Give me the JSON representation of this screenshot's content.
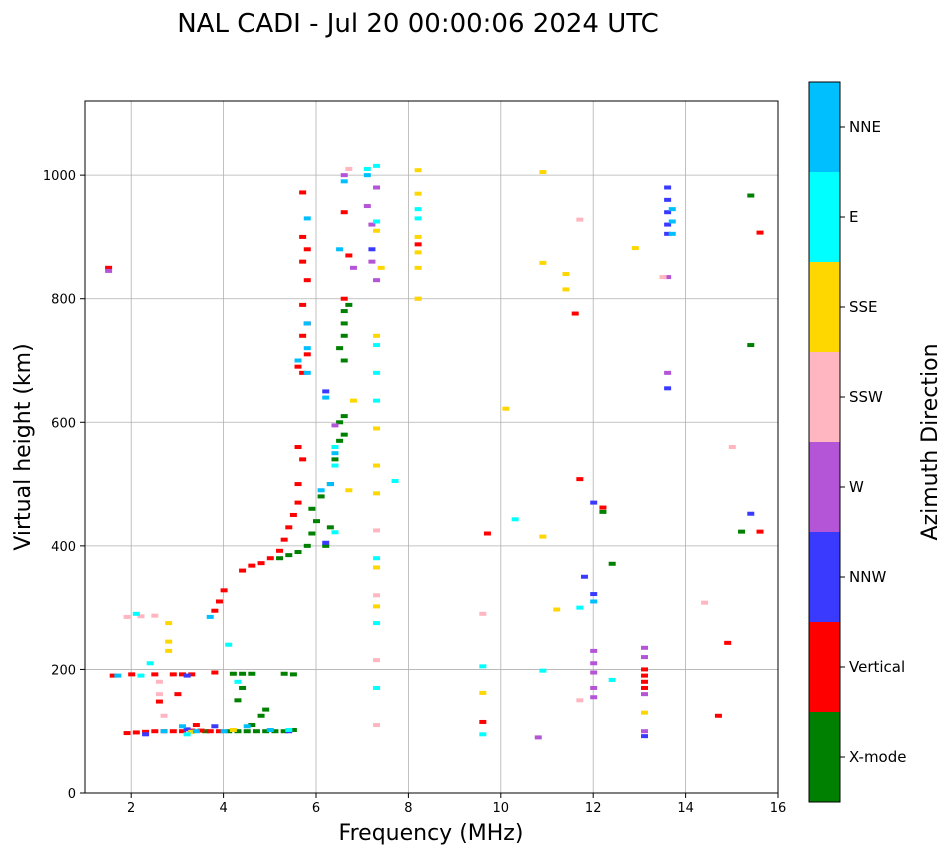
{
  "chart_data": {
    "type": "scatter",
    "title": "NAL CADI - Jul 20 00:00:06 2024 UTC",
    "xlabel": "Frequency (MHz)",
    "ylabel": "Virtual height (km)",
    "xlim": [
      1,
      16
    ],
    "ylim": [
      0,
      1120
    ],
    "xticks": [
      2,
      4,
      6,
      8,
      10,
      12,
      14,
      16
    ],
    "yticks": [
      0,
      200,
      400,
      600,
      800,
      1000
    ],
    "grid": true,
    "colorbar": {
      "title": "Azimuth Direction",
      "categories": [
        {
          "name": "X-mode",
          "color": "#008000"
        },
        {
          "name": "Vertical",
          "color": "#ff0000"
        },
        {
          "name": "NNW",
          "color": "#3a3aff"
        },
        {
          "name": "W",
          "color": "#b454d6"
        },
        {
          "name": "SSW",
          "color": "#ffb6c1"
        },
        {
          "name": "SSE",
          "color": "#ffd700"
        },
        {
          "name": "E",
          "color": "#00ffff"
        },
        {
          "name": "NNE",
          "color": "#00bfff"
        }
      ]
    },
    "series": [
      {
        "name": "X-mode",
        "points": [
          [
            4.1,
            100
          ],
          [
            4.3,
            100
          ],
          [
            4.5,
            100
          ],
          [
            4.7,
            100
          ],
          [
            4.9,
            100
          ],
          [
            5.1,
            100
          ],
          [
            5.3,
            100
          ],
          [
            5.5,
            102
          ],
          [
            3.3,
            100
          ],
          [
            3.6,
            100
          ],
          [
            4.2,
            193
          ],
          [
            4.4,
            193
          ],
          [
            4.6,
            193
          ],
          [
            5.3,
            193
          ],
          [
            5.5,
            192
          ],
          [
            4.8,
            125
          ],
          [
            4.9,
            135
          ],
          [
            4.6,
            110
          ],
          [
            4.3,
            150
          ],
          [
            4.4,
            170
          ],
          [
            5.2,
            380
          ],
          [
            5.4,
            385
          ],
          [
            5.6,
            390
          ],
          [
            5.8,
            400
          ],
          [
            5.9,
            420
          ],
          [
            6.0,
            440
          ],
          [
            5.9,
            460
          ],
          [
            6.1,
            480
          ],
          [
            6.3,
            500
          ],
          [
            6.4,
            540
          ],
          [
            6.5,
            570
          ],
          [
            6.6,
            610
          ],
          [
            6.6,
            740
          ],
          [
            6.6,
            760
          ],
          [
            6.6,
            780
          ],
          [
            6.7,
            790
          ],
          [
            6.5,
            720
          ],
          [
            6.6,
            700
          ],
          [
            6.2,
            400
          ],
          [
            6.3,
            430
          ],
          [
            6.5,
            600
          ],
          [
            6.6,
            580
          ],
          [
            15.4,
            967
          ],
          [
            15.4,
            725
          ],
          [
            15.2,
            423
          ],
          [
            12.4,
            371
          ],
          [
            12.2,
            455
          ]
        ]
      },
      {
        "name": "Vertical",
        "points": [
          [
            1.9,
            97
          ],
          [
            2.1,
            98
          ],
          [
            2.3,
            99
          ],
          [
            2.5,
            100
          ],
          [
            2.7,
            100
          ],
          [
            2.9,
            100
          ],
          [
            3.1,
            100
          ],
          [
            3.3,
            101
          ],
          [
            3.5,
            101
          ],
          [
            3.7,
            100
          ],
          [
            3.9,
            100
          ],
          [
            1.6,
            190
          ],
          [
            2.0,
            192
          ],
          [
            2.5,
            192
          ],
          [
            2.9,
            192
          ],
          [
            3.1,
            192
          ],
          [
            3.3,
            192
          ],
          [
            3.8,
            195
          ],
          [
            2.6,
            148
          ],
          [
            3.0,
            160
          ],
          [
            3.4,
            110
          ],
          [
            3.8,
            295
          ],
          [
            3.9,
            310
          ],
          [
            4.0,
            328
          ],
          [
            4.4,
            360
          ],
          [
            4.6,
            368
          ],
          [
            4.8,
            372
          ],
          [
            5.0,
            380
          ],
          [
            5.2,
            392
          ],
          [
            5.3,
            410
          ],
          [
            5.4,
            430
          ],
          [
            5.5,
            450
          ],
          [
            5.6,
            470
          ],
          [
            5.6,
            500
          ],
          [
            5.7,
            540
          ],
          [
            5.6,
            560
          ],
          [
            5.7,
            680
          ],
          [
            5.6,
            690
          ],
          [
            5.8,
            710
          ],
          [
            5.7,
            740
          ],
          [
            5.8,
            760
          ],
          [
            5.7,
            790
          ],
          [
            5.8,
            830
          ],
          [
            5.7,
            860
          ],
          [
            5.8,
            880
          ],
          [
            5.7,
            900
          ],
          [
            5.7,
            972
          ],
          [
            6.6,
            940
          ],
          [
            6.7,
            870
          ],
          [
            6.6,
            800
          ],
          [
            1.5,
            850
          ],
          [
            9.6,
            115
          ],
          [
            9.7,
            420
          ],
          [
            11.7,
            508
          ],
          [
            11.6,
            776
          ],
          [
            8.2,
            888
          ],
          [
            13.1,
            170
          ],
          [
            13.1,
            180
          ],
          [
            13.1,
            190
          ],
          [
            13.1,
            200
          ],
          [
            14.7,
            125
          ],
          [
            14.9,
            243
          ],
          [
            15.6,
            907
          ],
          [
            15.6,
            423
          ],
          [
            12.2,
            462
          ]
        ]
      },
      {
        "name": "NNW",
        "points": [
          [
            2.3,
            95
          ],
          [
            3.2,
            103
          ],
          [
            3.8,
            108
          ],
          [
            5.4,
            100
          ],
          [
            6.2,
            650
          ],
          [
            6.2,
            405
          ],
          [
            7.2,
            880
          ],
          [
            13.6,
            980
          ],
          [
            13.6,
            960
          ],
          [
            13.6,
            940
          ],
          [
            13.6,
            920
          ],
          [
            13.6,
            905
          ],
          [
            13.6,
            655
          ],
          [
            15.4,
            452
          ],
          [
            12.0,
            470
          ],
          [
            12.0,
            322
          ],
          [
            11.8,
            350
          ],
          [
            13.1,
            92
          ],
          [
            3.2,
            190
          ]
        ]
      },
      {
        "name": "W",
        "points": [
          [
            1.5,
            845
          ],
          [
            6.6,
            1000
          ],
          [
            7.2,
            860
          ],
          [
            7.3,
            830
          ],
          [
            7.2,
            920
          ],
          [
            7.1,
            950
          ],
          [
            7.3,
            980
          ],
          [
            6.8,
            850
          ],
          [
            6.4,
            595
          ],
          [
            12.0,
            155
          ],
          [
            12.0,
            170
          ],
          [
            12.0,
            195
          ],
          [
            12.0,
            210
          ],
          [
            12.0,
            230
          ],
          [
            13.1,
            220
          ],
          [
            13.1,
            235
          ],
          [
            13.1,
            160
          ],
          [
            13.1,
            100
          ],
          [
            13.6,
            680
          ],
          [
            13.6,
            835
          ],
          [
            10.8,
            90
          ]
        ]
      },
      {
        "name": "SSW",
        "points": [
          [
            2.2,
            286
          ],
          [
            2.5,
            287
          ],
          [
            1.9,
            285
          ],
          [
            2.6,
            180
          ],
          [
            2.6,
            160
          ],
          [
            2.7,
            125
          ],
          [
            6.7,
            1010
          ],
          [
            7.3,
            110
          ],
          [
            7.3,
            215
          ],
          [
            7.3,
            320
          ],
          [
            7.3,
            425
          ],
          [
            8.2,
            800
          ],
          [
            11.7,
            928
          ],
          [
            11.7,
            150
          ],
          [
            14.4,
            308
          ],
          [
            15.0,
            560
          ],
          [
            9.6,
            290
          ],
          [
            13.5,
            835
          ]
        ]
      },
      {
        "name": "SSE",
        "points": [
          [
            2.8,
            245
          ],
          [
            2.8,
            230
          ],
          [
            2.8,
            275
          ],
          [
            3.3,
            99
          ],
          [
            4.2,
            102
          ],
          [
            6.7,
            490
          ],
          [
            6.8,
            635
          ],
          [
            7.4,
            850
          ],
          [
            7.3,
            910
          ],
          [
            7.3,
            530
          ],
          [
            7.3,
            590
          ],
          [
            7.3,
            740
          ],
          [
            7.3,
            485
          ],
          [
            7.3,
            365
          ],
          [
            7.3,
            302
          ],
          [
            8.2,
            800
          ],
          [
            8.2,
            850
          ],
          [
            8.2,
            875
          ],
          [
            8.2,
            900
          ],
          [
            8.2,
            970
          ],
          [
            8.2,
            1008
          ],
          [
            10.1,
            622
          ],
          [
            10.9,
            1005
          ],
          [
            10.9,
            858
          ],
          [
            10.9,
            415
          ],
          [
            11.2,
            297
          ],
          [
            11.4,
            840
          ],
          [
            11.4,
            815
          ],
          [
            12.9,
            882
          ],
          [
            13.1,
            130
          ],
          [
            9.6,
            162
          ]
        ]
      },
      {
        "name": "E",
        "points": [
          [
            2.1,
            290
          ],
          [
            2.4,
            210
          ],
          [
            3.2,
            95
          ],
          [
            4.1,
            240
          ],
          [
            5.4,
            102
          ],
          [
            6.4,
            560
          ],
          [
            6.4,
            530
          ],
          [
            7.1,
            1010
          ],
          [
            7.3,
            1015
          ],
          [
            7.3,
            925
          ],
          [
            7.3,
            725
          ],
          [
            7.3,
            680
          ],
          [
            7.3,
            635
          ],
          [
            7.3,
            380
          ],
          [
            7.3,
            275
          ],
          [
            7.3,
            170
          ],
          [
            7.7,
            505
          ],
          [
            8.2,
            930
          ],
          [
            8.2,
            945
          ],
          [
            9.6,
            205
          ],
          [
            9.6,
            95
          ],
          [
            10.3,
            443
          ],
          [
            10.9,
            198
          ],
          [
            11.7,
            300
          ],
          [
            12.4,
            183
          ],
          [
            6.4,
            422
          ],
          [
            2.2,
            190
          ],
          [
            4.3,
            180
          ]
        ]
      },
      {
        "name": "NNE",
        "points": [
          [
            1.7,
            190
          ],
          [
            2.7,
            100
          ],
          [
            3.1,
            108
          ],
          [
            3.4,
            100
          ],
          [
            4.5,
            108
          ],
          [
            5.0,
            102
          ],
          [
            5.6,
            700
          ],
          [
            5.8,
            680
          ],
          [
            5.8,
            720
          ],
          [
            5.8,
            930
          ],
          [
            6.1,
            490
          ],
          [
            6.3,
            500
          ],
          [
            6.2,
            640
          ],
          [
            6.4,
            550
          ],
          [
            6.5,
            880
          ],
          [
            6.6,
            990
          ],
          [
            7.1,
            1000
          ],
          [
            12.0,
            310
          ],
          [
            13.7,
            905
          ],
          [
            13.7,
            925
          ],
          [
            13.7,
            945
          ],
          [
            5.8,
            760
          ],
          [
            4.0,
            100
          ],
          [
            3.7,
            285
          ]
        ]
      }
    ]
  }
}
